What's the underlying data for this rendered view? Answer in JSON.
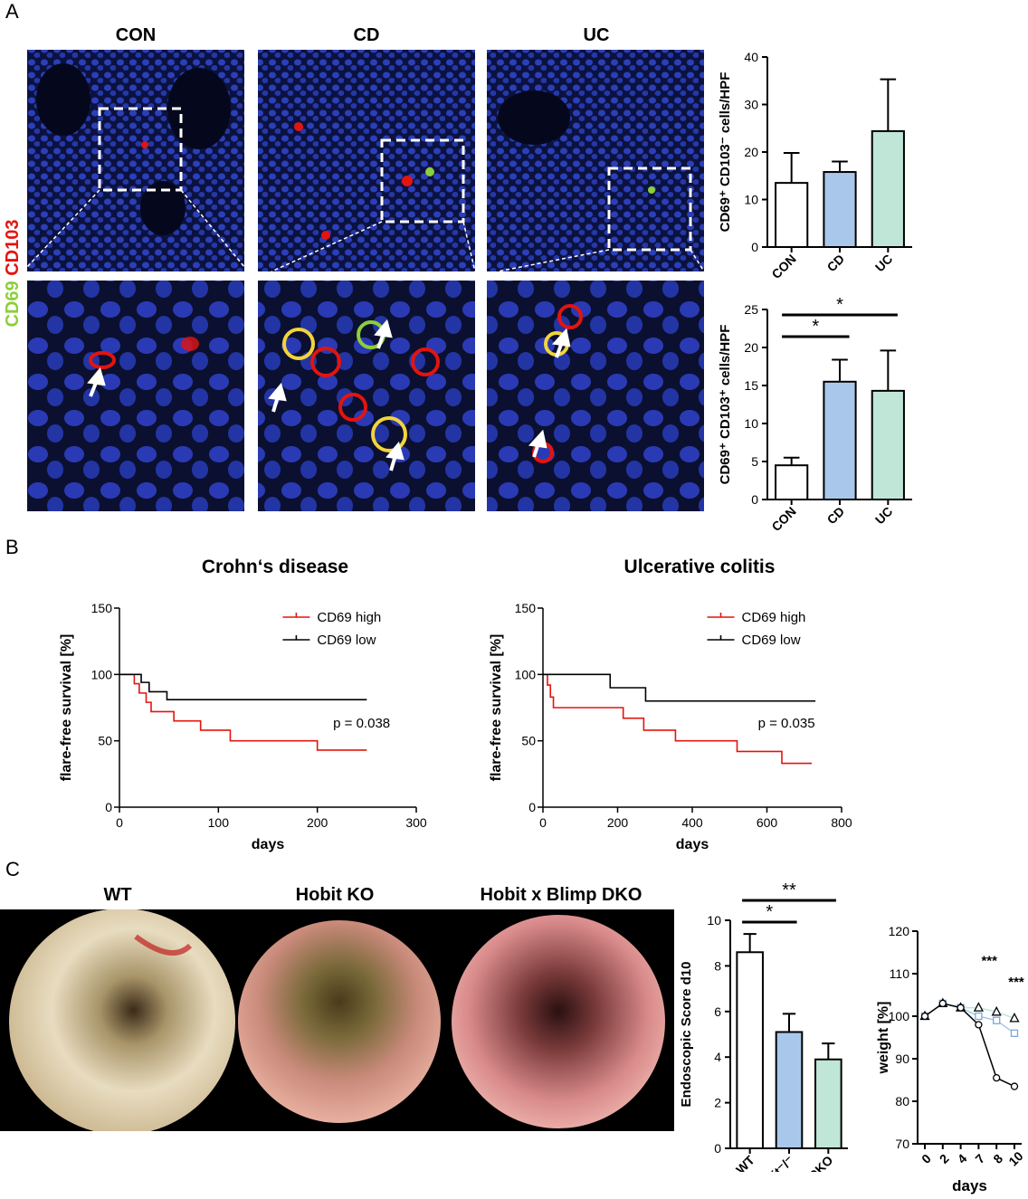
{
  "panels": {
    "A": {
      "label": "A",
      "columns": [
        "CON",
        "CD",
        "UC"
      ],
      "stain": {
        "green": "CD69",
        "red": "CD103"
      }
    },
    "B": {
      "label": "B",
      "titles": [
        "Crohn‘s disease",
        "Ulcerative colitis"
      ]
    },
    "C": {
      "label": "C",
      "image_titles": [
        "WT",
        "Hobit KO",
        "Hobit x Blimp DKO"
      ]
    }
  },
  "colors": {
    "con": "#ffffff",
    "cd": "#a9c7ea",
    "uc": "#bfe6d6",
    "red": "#e3140f",
    "black": "#000000",
    "microBlue": "#2b3fb8"
  },
  "chart_data": [
    {
      "id": "A-top",
      "type": "bar",
      "categories": [
        "CON",
        "CD",
        "UC"
      ],
      "values": [
        13.5,
        15.8,
        24.4
      ],
      "errors": [
        6.3,
        2.2,
        10.9
      ],
      "ylabel": "CD69⁺ CD103⁻ cells/HPF",
      "ylim": [
        0,
        40
      ],
      "yticks": [
        0,
        10,
        20,
        30,
        40
      ]
    },
    {
      "id": "A-bottom",
      "type": "bar",
      "categories": [
        "CON",
        "CD",
        "UC"
      ],
      "values": [
        4.5,
        15.5,
        14.3
      ],
      "errors": [
        1.0,
        2.9,
        5.3
      ],
      "ylabel": "CD69⁺ CD103⁺ cells/HPF",
      "ylim": [
        0,
        25
      ],
      "yticks": [
        0,
        5,
        10,
        15,
        20,
        25
      ],
      "significance": [
        {
          "from": "CON",
          "to": "CD",
          "label": "*"
        },
        {
          "from": "CON",
          "to": "UC",
          "label": "*"
        }
      ]
    },
    {
      "id": "B-crohn",
      "type": "line",
      "title": "Crohn‘s disease",
      "xlabel": "days",
      "ylabel": "flare-free survival [%]",
      "xlim": [
        0,
        300
      ],
      "ylim": [
        0,
        150
      ],
      "xticks": [
        0,
        100,
        200,
        300
      ],
      "yticks": [
        0,
        50,
        100,
        150
      ],
      "annotation": "p = 0.038",
      "series": [
        {
          "name": "CD69 high",
          "steps": [
            [
              0,
              100
            ],
            [
              15,
              93
            ],
            [
              20,
              86
            ],
            [
              27,
              79
            ],
            [
              32,
              72
            ],
            [
              55,
              65
            ],
            [
              82,
              58
            ],
            [
              112,
              50
            ],
            [
              200,
              43
            ],
            [
              250,
              43
            ]
          ]
        },
        {
          "name": "CD69 low",
          "steps": [
            [
              0,
              100
            ],
            [
              22,
              94
            ],
            [
              30,
              87
            ],
            [
              48,
              81
            ],
            [
              250,
              81
            ]
          ]
        }
      ]
    },
    {
      "id": "B-uc",
      "type": "line",
      "title": "Ulcerative colitis",
      "xlabel": "days",
      "ylabel": "flare-free survival [%]",
      "xlim": [
        0,
        800
      ],
      "ylim": [
        0,
        150
      ],
      "xticks": [
        0,
        200,
        400,
        600,
        800
      ],
      "yticks": [
        0,
        50,
        100,
        150
      ],
      "annotation": "p = 0.035",
      "series": [
        {
          "name": "CD69 high",
          "steps": [
            [
              0,
              100
            ],
            [
              12,
              92
            ],
            [
              20,
              83
            ],
            [
              28,
              75
            ],
            [
              215,
              67
            ],
            [
              270,
              58
            ],
            [
              355,
              50
            ],
            [
              520,
              42
            ],
            [
              640,
              33
            ],
            [
              720,
              33
            ]
          ]
        },
        {
          "name": "CD69 low",
          "steps": [
            [
              0,
              100
            ],
            [
              180,
              90
            ],
            [
              275,
              80
            ],
            [
              730,
              80
            ]
          ]
        }
      ]
    },
    {
      "id": "C-endo",
      "type": "bar",
      "categories": [
        "WT",
        "Hobit⁻/⁻",
        "DKO"
      ],
      "values": [
        8.6,
        5.1,
        3.9
      ],
      "errors": [
        0.8,
        0.8,
        0.7
      ],
      "ylabel": "Endoscopic Score d10",
      "ylim": [
        0,
        10
      ],
      "yticks": [
        0,
        2,
        4,
        6,
        8,
        10
      ],
      "significance": [
        {
          "from": "WT",
          "to": "Hobit⁻/⁻",
          "label": "*"
        },
        {
          "from": "WT",
          "to": "DKO",
          "label": "**"
        }
      ]
    },
    {
      "id": "C-weight",
      "type": "line",
      "xlabel": "days",
      "ylabel": "weight [%]",
      "categories": [
        "0",
        "2",
        "4",
        "7",
        "8",
        "10"
      ],
      "ylim": [
        70,
        120
      ],
      "yticks": [
        70,
        80,
        90,
        100,
        110,
        120
      ],
      "annotations": [
        "***",
        "***"
      ],
      "series": [
        {
          "marker": "circle",
          "values": [
            100,
            103,
            102,
            98,
            85.5,
            83.5
          ]
        },
        {
          "marker": "triangle",
          "values": [
            100,
            103,
            102,
            102,
            101,
            99.5
          ]
        },
        {
          "marker": "square",
          "values": [
            100,
            103,
            102,
            100,
            99,
            96
          ]
        }
      ]
    }
  ]
}
